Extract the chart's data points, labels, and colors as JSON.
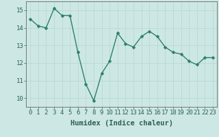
{
  "title": "",
  "xlabel": "Humidex (Indice chaleur)",
  "ylabel": "",
  "x": [
    0,
    1,
    2,
    3,
    4,
    5,
    6,
    7,
    8,
    9,
    10,
    11,
    12,
    13,
    14,
    15,
    16,
    17,
    18,
    19,
    20,
    21,
    22,
    23
  ],
  "y": [
    14.5,
    14.1,
    14.0,
    15.1,
    14.7,
    14.7,
    12.6,
    10.8,
    9.85,
    11.4,
    12.1,
    13.7,
    13.1,
    12.9,
    13.5,
    13.8,
    13.5,
    12.9,
    12.6,
    12.5,
    12.1,
    11.9,
    12.3,
    12.3
  ],
  "line_color": "#2e7d6e",
  "marker_color": "#2e7d6e",
  "bg_color": "#cde8e4",
  "grid_color": "#b8d8d4",
  "axis_color": "#666666",
  "tick_color": "#2e5e58",
  "xlim": [
    -0.5,
    23.5
  ],
  "ylim": [
    9.5,
    15.5
  ],
  "yticks": [
    10,
    11,
    12,
    13,
    14,
    15
  ],
  "xticks": [
    0,
    1,
    2,
    3,
    4,
    5,
    6,
    7,
    8,
    9,
    10,
    11,
    12,
    13,
    14,
    15,
    16,
    17,
    18,
    19,
    20,
    21,
    22,
    23
  ],
  "xlabel_fontsize": 7.5,
  "tick_fontsize": 6.5,
  "linewidth": 1.0,
  "markersize": 2.5
}
